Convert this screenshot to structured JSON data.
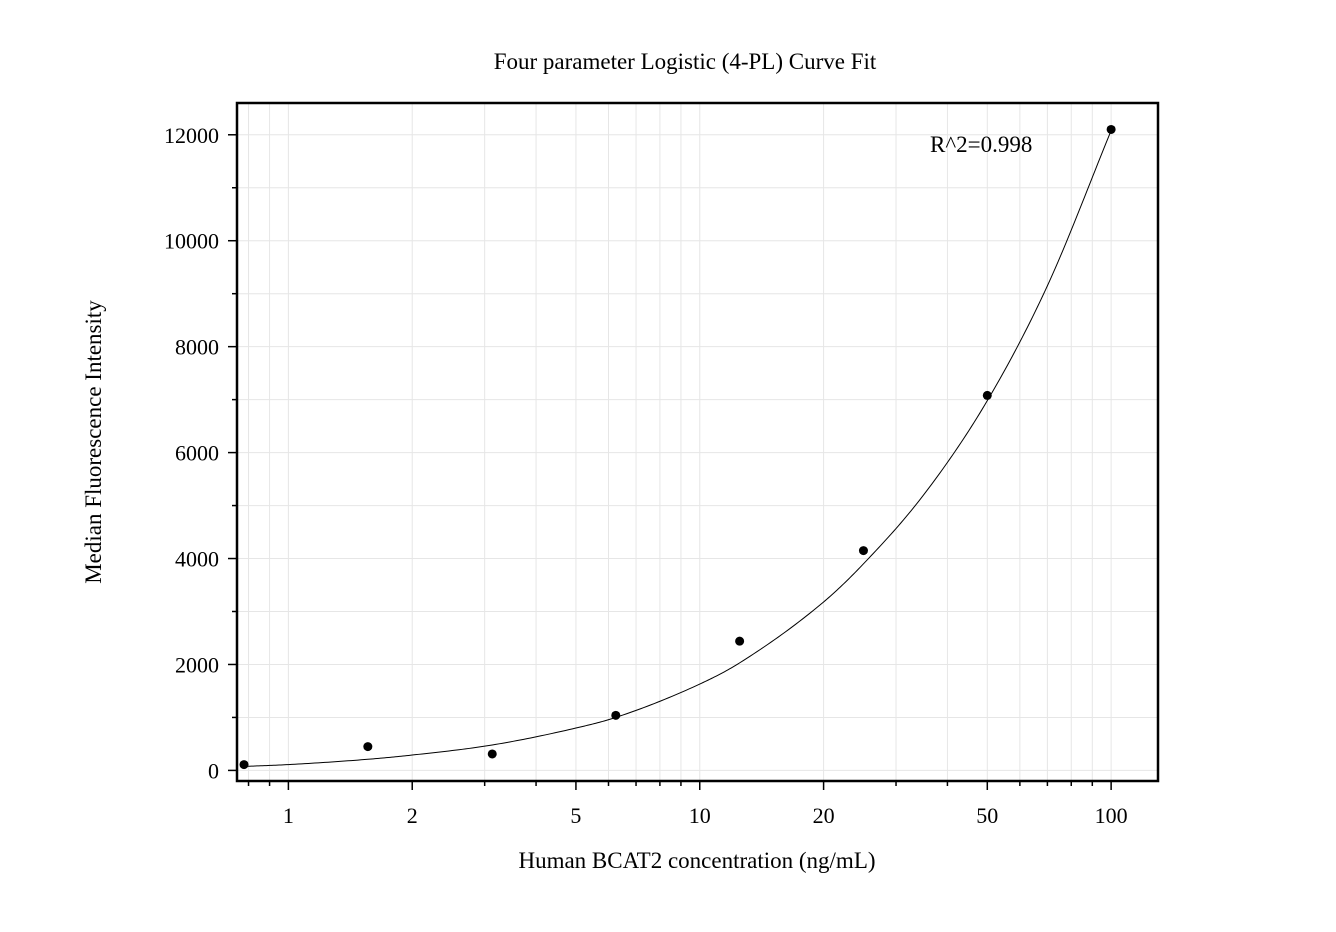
{
  "chart_data": {
    "type": "scatter",
    "title": "Four parameter Logistic (4-PL) Curve Fit",
    "xlabel": "Human BCAT2 concentration (ng/mL)",
    "ylabel": "Median Fluorescence Intensity",
    "annotation": "R^2=0.998",
    "x_scale": "log",
    "xlim": [
      0.75,
      130
    ],
    "ylim": [
      -200,
      12600
    ],
    "x_ticks": [
      1,
      2,
      5,
      10,
      20,
      50,
      100
    ],
    "x_tick_labels": [
      "1",
      "2",
      "5",
      "10",
      "20",
      "50",
      "100"
    ],
    "y_ticks": [
      0,
      2000,
      4000,
      6000,
      8000,
      10000,
      12000
    ],
    "y_tick_labels": [
      "0",
      "2000",
      "4000",
      "6000",
      "8000",
      "10000",
      "12000"
    ],
    "grid": true,
    "series": [
      {
        "type": "scatter",
        "x": [
          0.78,
          1.56,
          3.13,
          6.25,
          12.5,
          25,
          50,
          100
        ],
        "y": [
          110,
          450,
          310,
          1040,
          2440,
          4150,
          7080,
          12100
        ]
      }
    ],
    "fit_curve": {
      "type": "line",
      "x": [
        0.78,
        1,
        1.56,
        2,
        3.13,
        5,
        6.25,
        10,
        12.5,
        20,
        25,
        35,
        50,
        70,
        100
      ],
      "y": [
        75,
        110,
        210,
        290,
        480,
        800,
        1000,
        1630,
        2030,
        3180,
        3900,
        5200,
        6980,
        9150,
        12080
      ]
    },
    "colors": {
      "marker": "#000000",
      "curve": "#000000",
      "grid": "#e6e6e6",
      "axis": "#000000"
    }
  }
}
